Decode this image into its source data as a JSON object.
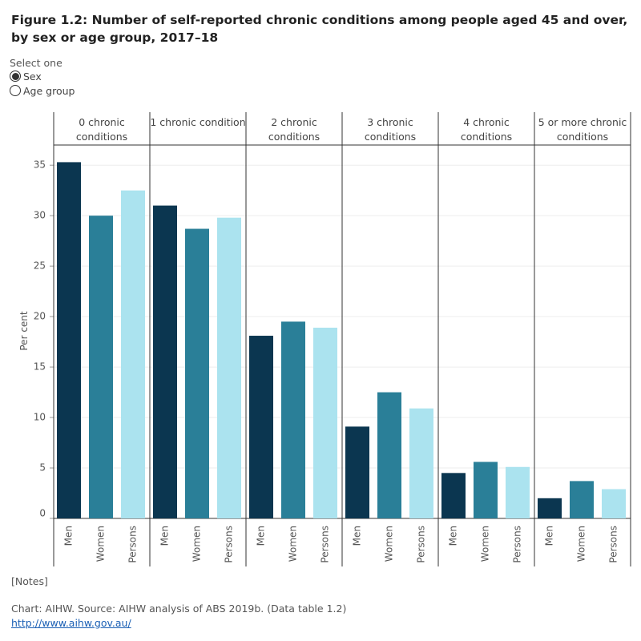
{
  "chart_data": {
    "type": "bar",
    "title": "Figure 1.2: Number of self-reported chronic conditions among people aged 45 and over, by sex or age group, 2017–18",
    "control": {
      "label": "Select one",
      "options": [
        "Sex",
        "Age group"
      ],
      "selected": "Sex"
    },
    "y_label": "Per cent",
    "groups": [
      "0 chronic conditions",
      "1 chronic condition",
      "2 chronic conditions",
      "3 chronic conditions",
      "4 chronic conditions",
      "5 or more chronic conditions"
    ],
    "series": [
      {
        "name": "Men",
        "color": "#0b3650",
        "values": [
          35.3,
          31.0,
          18.1,
          9.1,
          4.5,
          2.0
        ]
      },
      {
        "name": "Women",
        "color": "#2a7f98",
        "values": [
          30.0,
          28.7,
          19.5,
          12.5,
          5.6,
          3.7
        ]
      },
      {
        "name": "Persons",
        "color": "#abe3ef",
        "values": [
          32.5,
          29.8,
          18.9,
          10.9,
          5.1,
          2.9
        ]
      }
    ],
    "ylim": [
      0,
      37
    ],
    "yticks": [
      0,
      5,
      10,
      15,
      20,
      25,
      30,
      35
    ],
    "grid": true
  },
  "footer": {
    "notes": "[Notes]",
    "source": "Chart: AIHW. Source: AIHW analysis of ABS 2019b. (Data table 1.2)",
    "url": "http://www.aihw.gov.au/"
  }
}
